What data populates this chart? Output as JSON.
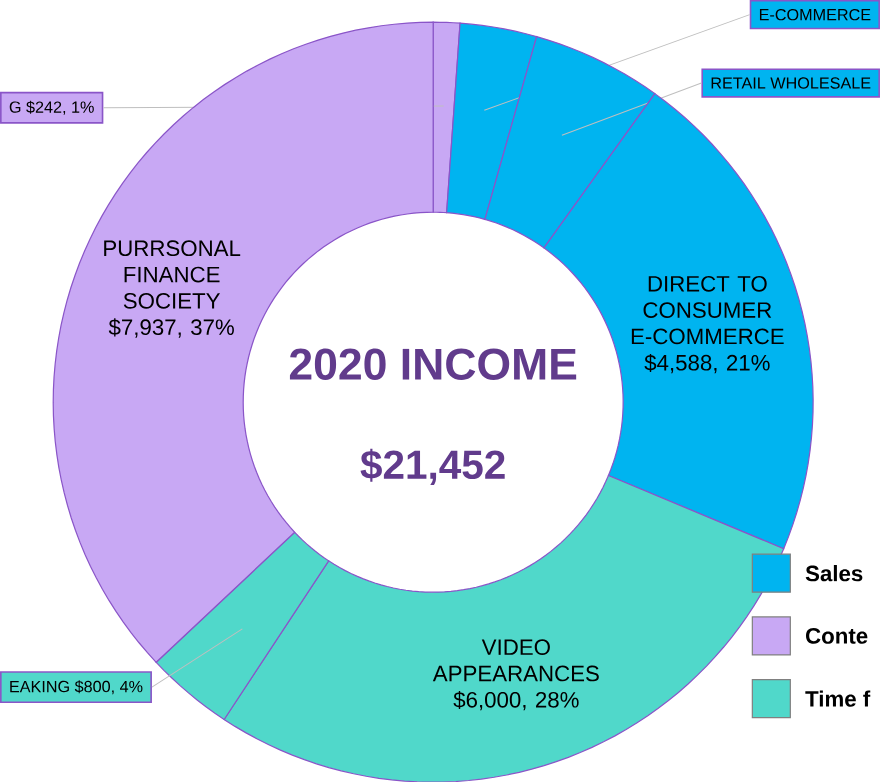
{
  "chart_data": {
    "type": "donut",
    "title": "2020 INCOME",
    "subtitle": "$21,452",
    "categories": [
      "G",
      "E-COMMERCE",
      "RETAIL WHOLESALE",
      "DIRECT TO CONSUMER E-COMMERCE",
      "VIDEO APPEARANCES",
      "EAKING",
      "PURRSONAL FINANCE SOCIETY"
    ],
    "values": [
      242,
      700,
      1185,
      4588,
      6000,
      800,
      7937
    ],
    "value_labels": [
      "$242, 1%",
      null,
      null,
      "$4,588, 21%",
      "$6,000, 28%",
      "$800, 4%",
      "$7,937, 37%"
    ],
    "colors": [
      "#c8a8f4",
      "#00b4f0",
      "#00b4f0",
      "#00b4f0",
      "#50d8ca",
      "#50d8ca",
      "#c8a8f4"
    ],
    "annotations": [
      "Sales",
      "Conte",
      "Time f"
    ]
  }
}
